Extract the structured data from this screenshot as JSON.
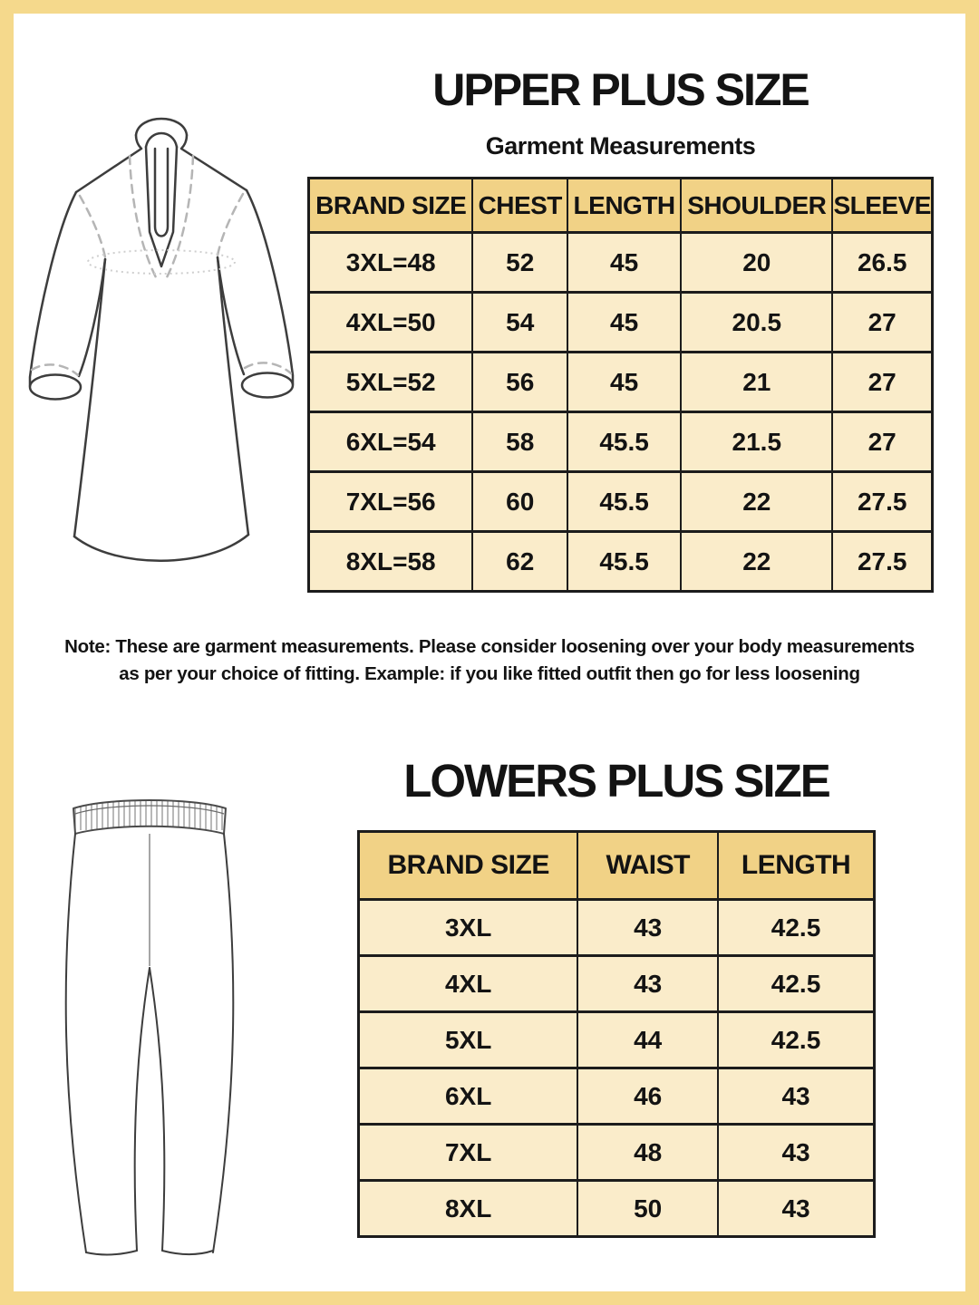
{
  "upper_section": {
    "title": "UPPER PLUS SIZE",
    "subtitle": "Garment Measurements",
    "table": {
      "headers": [
        "BRAND SIZE",
        "CHEST",
        "LENGTH",
        "SHOULDER",
        "SLEEVE"
      ],
      "rows": [
        [
          "3XL=48",
          "52",
          "45",
          "20",
          "26.5"
        ],
        [
          "4XL=50",
          "54",
          "45",
          "20.5",
          "27"
        ],
        [
          "5XL=52",
          "56",
          "45",
          "21",
          "27"
        ],
        [
          "6XL=54",
          "58",
          "45.5",
          "21.5",
          "27"
        ],
        [
          "7XL=56",
          "60",
          "45.5",
          "22",
          "27.5"
        ],
        [
          "8XL=58",
          "62",
          "45.5",
          "22",
          "27.5"
        ]
      ]
    },
    "note_line1": "Note: These are garment measurements. Please consider loosening over your body measurements",
    "note_line2": "as per your choice of fitting. Example: if you like fitted outfit then go for less loosening"
  },
  "lower_section": {
    "title": "LOWERS PLUS SIZE",
    "table": {
      "headers": [
        "BRAND SIZE",
        "WAIST",
        "LENGTH"
      ],
      "rows": [
        [
          "3XL",
          "43",
          "42.5"
        ],
        [
          "4XL",
          "43",
          "42.5"
        ],
        [
          "5XL",
          "44",
          "42.5"
        ],
        [
          "6XL",
          "46",
          "43"
        ],
        [
          "7XL",
          "48",
          "43"
        ],
        [
          "8XL",
          "50",
          "43"
        ]
      ]
    }
  },
  "illustrations": {
    "upper": "kurta-front-line-drawing",
    "lower": "leggings-front-line-drawing"
  },
  "colors": {
    "frame": "#F5D98C",
    "table_header_bg": "#F1D286",
    "table_row_bg": "#FAECCA",
    "table_border": "#1C1C1C",
    "text": "#131313",
    "line_art": "#3D3D3D",
    "dash": "#B5B5B5"
  }
}
